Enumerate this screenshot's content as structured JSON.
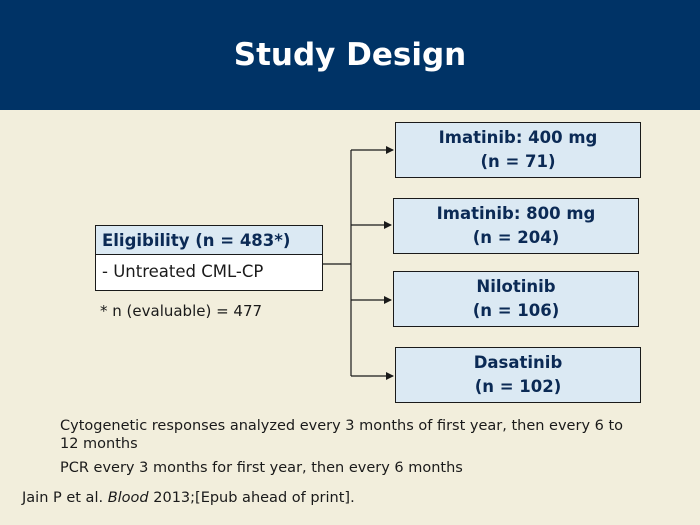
{
  "slide": {
    "title": "Study Design"
  },
  "eligibility": {
    "header": "Eligibility (n = 483*)",
    "criterion": "- Untreated CML-CP",
    "footnote": "* n (evaluable) = 477"
  },
  "arms": [
    {
      "line1": "Imatinib: 400 mg",
      "line2": "(n = 71)"
    },
    {
      "line1": "Imatinib: 800 mg",
      "line2": "(n = 204)"
    },
    {
      "line1": "Nilotinib",
      "line2": "(n = 106)"
    },
    {
      "line1": "Dasatinib",
      "line2": "(n = 102)"
    }
  ],
  "notes": [
    "Cytogenetic responses analyzed every 3 months of first year, then every 6 to 12 months",
    "PCR every 3 months for first year, then every 6 months"
  ],
  "citation": {
    "authors": "Jain P et al. ",
    "journal": "Blood",
    "details": " 2013;[Epub ahead of print]."
  },
  "colors": {
    "header_bg": "#003366",
    "slide_bg": "#f2eedc",
    "box_fill": "#dbe9f3",
    "box_text": "#0b2a55"
  }
}
